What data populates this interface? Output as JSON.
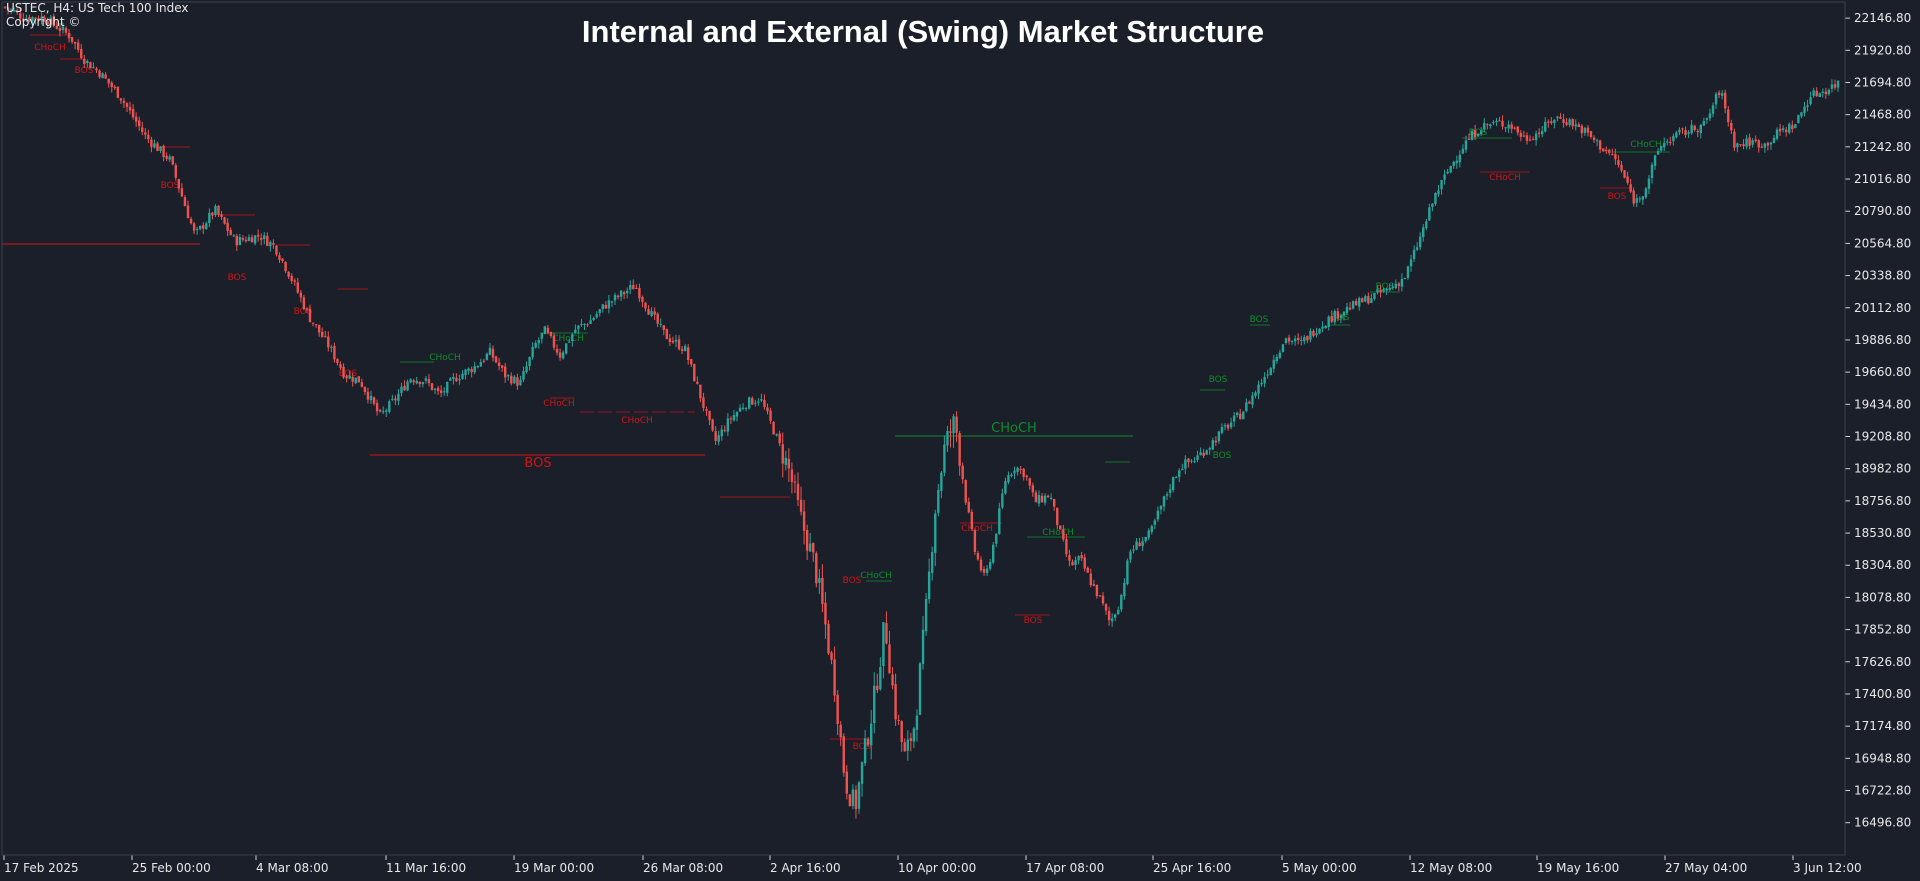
{
  "chart_header": {
    "symbol_info": "USTEC, H4:  US Tech 100 Index",
    "copyright": "Copyright ©"
  },
  "chart_data": {
    "type": "candlestick",
    "title": "Internal and External (Swing) Market Structure",
    "xlabel": "",
    "ylabel": "",
    "y_range": [
      16270,
      22260
    ],
    "y_ticks": [
      16496.8,
      16722.8,
      16948.8,
      17174.8,
      17400.8,
      17626.8,
      17852.8,
      18078.8,
      18304.8,
      18530.8,
      18756.8,
      18982.8,
      19208.8,
      19434.8,
      19660.8,
      19886.8,
      20112.8,
      20338.8,
      20564.8,
      20790.8,
      21016.8,
      21242.8,
      21468.8,
      21694.8,
      21920.8,
      22146.8
    ],
    "x_ticks": [
      "17 Feb 2025",
      "25 Feb 00:00",
      "4 Mar 08:00",
      "11 Mar 16:00",
      "19 Mar 00:00",
      "26 Mar 08:00",
      "2 Apr 16:00",
      "10 Apr 00:00",
      "17 Apr 08:00",
      "25 Apr 16:00",
      "5 May 00:00",
      "12 May 08:00",
      "19 May 16:00",
      "27 May 04:00",
      "3 Jun 12:00"
    ],
    "close_path": [
      [
        0,
        22240
      ],
      [
        25,
        22150
      ],
      [
        45,
        22150
      ],
      [
        70,
        22020
      ],
      [
        85,
        21850
      ],
      [
        100,
        21760
      ],
      [
        120,
        21600
      ],
      [
        145,
        21320
      ],
      [
        170,
        21150
      ],
      [
        195,
        20620
      ],
      [
        215,
        20800
      ],
      [
        235,
        20580
      ],
      [
        260,
        20620
      ],
      [
        275,
        20540
      ],
      [
        290,
        20340
      ],
      [
        310,
        20040
      ],
      [
        330,
        19830
      ],
      [
        345,
        19640
      ],
      [
        360,
        19600
      ],
      [
        380,
        19350
      ],
      [
        395,
        19470
      ],
      [
        410,
        19620
      ],
      [
        425,
        19600
      ],
      [
        440,
        19500
      ],
      [
        455,
        19620
      ],
      [
        475,
        19700
      ],
      [
        490,
        19800
      ],
      [
        505,
        19640
      ],
      [
        520,
        19580
      ],
      [
        535,
        19850
      ],
      [
        545,
        19950
      ],
      [
        560,
        19780
      ],
      [
        575,
        19960
      ],
      [
        590,
        20020
      ],
      [
        605,
        20130
      ],
      [
        620,
        20200
      ],
      [
        635,
        20270
      ],
      [
        650,
        20080
      ],
      [
        665,
        19920
      ],
      [
        685,
        19820
      ],
      [
        700,
        19500
      ],
      [
        715,
        19170
      ],
      [
        730,
        19330
      ],
      [
        745,
        19440
      ],
      [
        760,
        19480
      ],
      [
        775,
        19230
      ],
      [
        790,
        18950
      ],
      [
        800,
        18650
      ],
      [
        815,
        18300
      ],
      [
        825,
        17900
      ],
      [
        835,
        17450
      ],
      [
        845,
        16800
      ],
      [
        855,
        16600
      ],
      [
        865,
        17000
      ],
      [
        875,
        17400
      ],
      [
        885,
        17900
      ],
      [
        895,
        17300
      ],
      [
        905,
        16950
      ],
      [
        915,
        17200
      ],
      [
        925,
        17900
      ],
      [
        935,
        18700
      ],
      [
        945,
        19150
      ],
      [
        955,
        19320
      ],
      [
        965,
        18800
      ],
      [
        975,
        18400
      ],
      [
        985,
        18200
      ],
      [
        995,
        18500
      ],
      [
        1005,
        18900
      ],
      [
        1015,
        19000
      ],
      [
        1025,
        18950
      ],
      [
        1035,
        18750
      ],
      [
        1050,
        18800
      ],
      [
        1060,
        18530
      ],
      [
        1070,
        18300
      ],
      [
        1080,
        18350
      ],
      [
        1090,
        18200
      ],
      [
        1100,
        18070
      ],
      [
        1110,
        17900
      ],
      [
        1120,
        18050
      ],
      [
        1130,
        18400
      ],
      [
        1140,
        18470
      ],
      [
        1150,
        18520
      ],
      [
        1160,
        18700
      ],
      [
        1170,
        18860
      ],
      [
        1180,
        19000
      ],
      [
        1195,
        19050
      ],
      [
        1210,
        19150
      ],
      [
        1225,
        19270
      ],
      [
        1240,
        19360
      ],
      [
        1255,
        19520
      ],
      [
        1270,
        19700
      ],
      [
        1285,
        19900
      ],
      [
        1300,
        19860
      ],
      [
        1315,
        19960
      ],
      [
        1330,
        20040
      ],
      [
        1345,
        20100
      ],
      [
        1360,
        20150
      ],
      [
        1375,
        20200
      ],
      [
        1390,
        20250
      ],
      [
        1405,
        20330
      ],
      [
        1420,
        20600
      ],
      [
        1435,
        20900
      ],
      [
        1450,
        21100
      ],
      [
        1465,
        21270
      ],
      [
        1480,
        21380
      ],
      [
        1495,
        21410
      ],
      [
        1510,
        21400
      ],
      [
        1525,
        21300
      ],
      [
        1540,
        21350
      ],
      [
        1555,
        21450
      ],
      [
        1570,
        21420
      ],
      [
        1585,
        21350
      ],
      [
        1600,
        21250
      ],
      [
        1615,
        21160
      ],
      [
        1625,
        21020
      ],
      [
        1635,
        20850
      ],
      [
        1645,
        20950
      ],
      [
        1660,
        21250
      ],
      [
        1675,
        21320
      ],
      [
        1690,
        21360
      ],
      [
        1705,
        21400
      ],
      [
        1720,
        21650
      ],
      [
        1735,
        21250
      ],
      [
        1750,
        21280
      ],
      [
        1765,
        21260
      ],
      [
        1780,
        21350
      ],
      [
        1795,
        21400
      ],
      [
        1810,
        21600
      ],
      [
        1825,
        21640
      ],
      [
        1840,
        21700
      ]
    ],
    "structure_labels": [
      {
        "text": "CHoCH",
        "type": "internal",
        "direction": "bearish"
      },
      {
        "text": "BOS",
        "type": "internal",
        "direction": "bearish"
      },
      {
        "text": "BOS",
        "type": "internal",
        "direction": "bearish"
      },
      {
        "text": "BOS",
        "type": "internal",
        "direction": "bearish"
      },
      {
        "text": "BOS",
        "type": "internal",
        "direction": "bearish"
      },
      {
        "text": "BOS",
        "type": "internal",
        "direction": "bearish"
      },
      {
        "text": "CHoCH",
        "type": "internal",
        "direction": "bullish"
      },
      {
        "text": "CHoCH",
        "type": "internal",
        "direction": "bullish"
      },
      {
        "text": "CHoCH",
        "type": "internal",
        "direction": "bearish"
      },
      {
        "text": "CHoCH",
        "type": "internal",
        "direction": "bearish"
      },
      {
        "text": "BOS",
        "type": "swing",
        "direction": "bearish"
      },
      {
        "text": "BOS",
        "type": "internal",
        "direction": "bearish"
      },
      {
        "text": "BOS",
        "type": "internal",
        "direction": "bearish"
      },
      {
        "text": "CHoCH",
        "type": "internal",
        "direction": "bullish"
      },
      {
        "text": "CHoCH",
        "type": "swing",
        "direction": "bullish"
      },
      {
        "text": "CHoCH",
        "type": "internal",
        "direction": "bearish"
      },
      {
        "text": "CHoCH",
        "type": "internal",
        "direction": "bullish"
      },
      {
        "text": "BOS",
        "type": "internal",
        "direction": "bearish"
      },
      {
        "text": "BOS",
        "type": "internal",
        "direction": "bullish"
      },
      {
        "text": "BOS",
        "type": "internal",
        "direction": "bullish"
      },
      {
        "text": "BOS",
        "type": "internal",
        "direction": "bullish"
      },
      {
        "text": "BOS",
        "type": "internal",
        "direction": "bullish"
      },
      {
        "text": "BOS",
        "type": "internal",
        "direction": "bullish"
      },
      {
        "text": "BOS",
        "type": "internal",
        "direction": "bullish"
      },
      {
        "text": "CHoCH",
        "type": "internal",
        "direction": "bearish"
      },
      {
        "text": "CHoCH",
        "type": "internal",
        "direction": "bullish"
      },
      {
        "text": "BOS",
        "type": "internal",
        "direction": "bearish"
      }
    ],
    "grid": false,
    "colors": {
      "background": "#1b1f2a",
      "bull_candle": "#26a69a",
      "bear_candle": "#ef5350",
      "bull_structure": "#0f8c2a",
      "bear_structure": "#d01414",
      "axis": "#e8e8e8",
      "title": "#ffffff"
    }
  }
}
